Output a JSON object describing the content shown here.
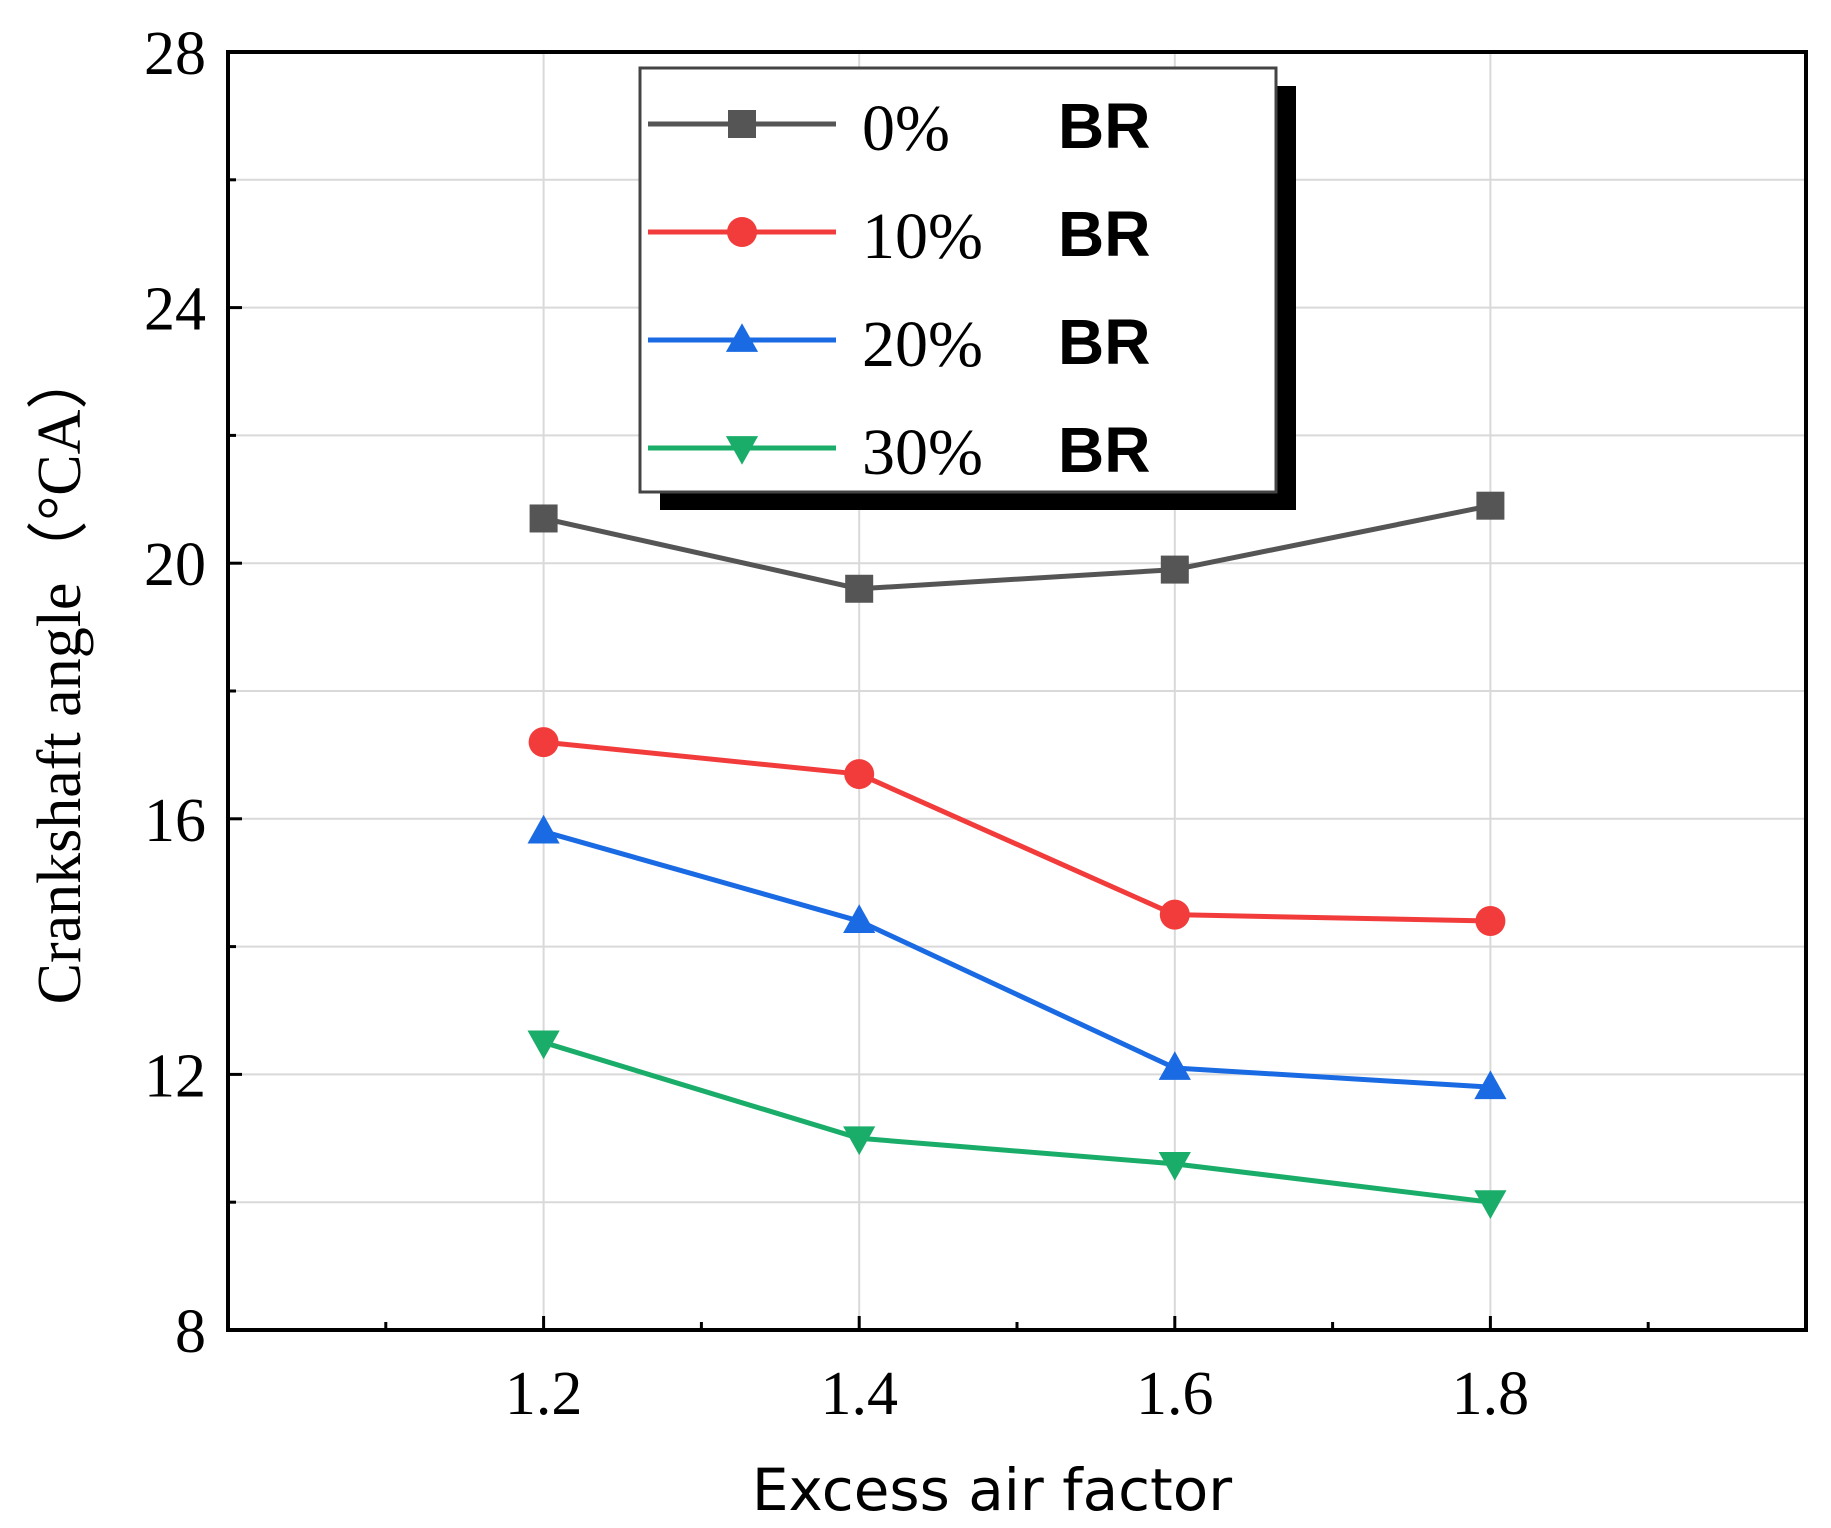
{
  "chart_data": {
    "type": "line",
    "title": "",
    "xlabel": "Excess air factor",
    "ylabel": "Crankshaft angle（°CA）",
    "xlim": [
      1.0,
      2.0
    ],
    "ylim": [
      8,
      28
    ],
    "x_ticks": [
      1.2,
      1.4,
      1.6,
      1.8
    ],
    "x_tick_labels": [
      "1.2",
      "1.4",
      "1.6",
      "1.8"
    ],
    "y_ticks": [
      8,
      12,
      16,
      20,
      24,
      28
    ],
    "y_tick_labels": [
      "8",
      "12",
      "16",
      "20",
      "24",
      "28"
    ],
    "grid": true,
    "legend_position": "top-center",
    "x": [
      1.2,
      1.4,
      1.6,
      1.8
    ],
    "series": [
      {
        "name": "0%",
        "suffix": "BR",
        "color": "#555555",
        "marker": "square",
        "values": [
          20.7,
          19.6,
          19.9,
          20.9
        ]
      },
      {
        "name": "10%",
        "suffix": "BR",
        "color": "#f23c3c",
        "marker": "circle",
        "values": [
          17.2,
          16.7,
          14.5,
          14.4
        ]
      },
      {
        "name": "20%",
        "suffix": "BR",
        "color": "#1a6be3",
        "marker": "triangle-up",
        "values": [
          15.8,
          14.4,
          12.1,
          11.8
        ]
      },
      {
        "name": "30%",
        "suffix": "BR",
        "color": "#1aad6a",
        "marker": "triangle-down",
        "values": [
          12.5,
          11.0,
          10.6,
          10.0
        ]
      }
    ]
  }
}
